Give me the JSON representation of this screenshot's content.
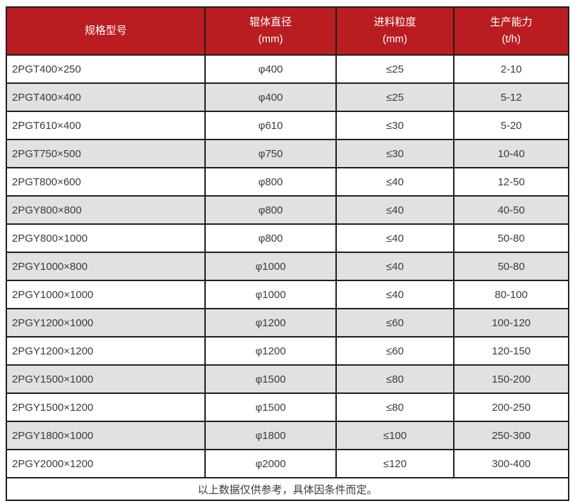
{
  "colors": {
    "header_bg": "#b91d22",
    "header_text": "#ffffff",
    "row_bg": "#ffffff",
    "row_alt_bg": "#e1e1e1",
    "border": "#1f1f1f",
    "body_text": "#3b3b3b"
  },
  "chart_data": {
    "type": "table",
    "columns": [
      {
        "label": "规格型号",
        "unit": ""
      },
      {
        "label": "辊体直径",
        "unit": "(mm)"
      },
      {
        "label": "进料粒度",
        "unit": "(mm)"
      },
      {
        "label": "生产能力",
        "unit": "(t/h)"
      }
    ],
    "rows": [
      [
        "2PGT400×250",
        "φ400",
        "≤25",
        "2-10"
      ],
      [
        "2PGT400×400",
        "φ400",
        "≤25",
        "5-12"
      ],
      [
        "2PGT610×400",
        "φ610",
        "≤30",
        "5-20"
      ],
      [
        "2PGT750×500",
        "φ750",
        "≤30",
        "10-40"
      ],
      [
        "2PGT800×600",
        "φ800",
        "≤40",
        "12-50"
      ],
      [
        "2PGY800×800",
        "φ800",
        "≤40",
        "40-50"
      ],
      [
        "2PGY800×1000",
        "φ800",
        "≤40",
        "50-80"
      ],
      [
        "2PGY1000×800",
        "φ1000",
        "≤40",
        "50-80"
      ],
      [
        "2PGY1000×1000",
        "φ1000",
        "≤40",
        "80-100"
      ],
      [
        "2PGY1200×1000",
        "φ1200",
        "≤60",
        "100-120"
      ],
      [
        "2PGY1200×1200",
        "φ1200",
        "≤60",
        "120-150"
      ],
      [
        "2PGY1500×1000",
        "φ1500",
        "≤80",
        "150-200"
      ],
      [
        "2PGY1500×1200",
        "φ1500",
        "≤80",
        "200-250"
      ],
      [
        "2PGY1800×1000",
        "φ1800",
        "≤100",
        "250-300"
      ],
      [
        "2PGY2000×1200",
        "φ2000",
        "≤120",
        "300-400"
      ]
    ],
    "footnote": "以上数据仅供参考，具体因条件而定。"
  }
}
